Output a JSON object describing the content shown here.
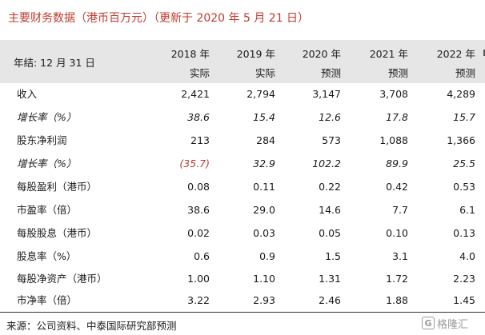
{
  "title": "主要财务数据（港币百万元）（更新于 2020 年 5 月 21 日）",
  "header": {
    "label": "年结: 12 月 31 日",
    "columns": [
      {
        "year": "2018 年",
        "type": "实际"
      },
      {
        "year": "2019 年",
        "type": "实际"
      },
      {
        "year": "2020 年",
        "type": "预测"
      },
      {
        "year": "2021 年",
        "type": "预测"
      },
      {
        "year": "2022 年",
        "type": "预测"
      }
    ]
  },
  "rows": [
    {
      "label": "收入",
      "values": [
        "2,421",
        "2,794",
        "3,147",
        "3,708",
        "4,289"
      ]
    },
    {
      "label": "增长率（%）",
      "values": [
        "38.6",
        "15.4",
        "12.6",
        "17.8",
        "15.7"
      ]
    },
    {
      "label": "股东净利润",
      "values": [
        "213",
        "284",
        "573",
        "1,088",
        "1,366"
      ]
    },
    {
      "label": "增长率（%）",
      "values": [
        "(35.7)",
        "32.9",
        "102.2",
        "89.9",
        "25.5"
      ]
    },
    {
      "label": "每股盈利（港币）",
      "values": [
        "0.08",
        "0.11",
        "0.22",
        "0.42",
        "0.53"
      ]
    },
    {
      "label": "市盈率（倍）",
      "values": [
        "38.6",
        "29.0",
        "14.6",
        "7.7",
        "6.1"
      ]
    },
    {
      "label": "每股股息（港币）",
      "values": [
        "0.02",
        "0.03",
        "0.05",
        "0.10",
        "0.13"
      ]
    },
    {
      "label": "股息率（%）",
      "values": [
        "0.6",
        "0.9",
        "1.5",
        "3.1",
        "4.0"
      ]
    },
    {
      "label": "每股净资产（港币）",
      "values": [
        "1.00",
        "1.10",
        "1.31",
        "1.72",
        "2.23"
      ]
    },
    {
      "label": "市净率（倍）",
      "values": [
        "3.22",
        "2.93",
        "2.46",
        "1.88",
        "1.45"
      ]
    }
  ],
  "source": "来源：公司资料、中泰国际研究部预测",
  "watermark": {
    "mark": "G",
    "text": "格隆汇"
  },
  "colors": {
    "title": "#c0392b",
    "negative": "#c0392b",
    "header_bg": "#e6e6e6"
  }
}
